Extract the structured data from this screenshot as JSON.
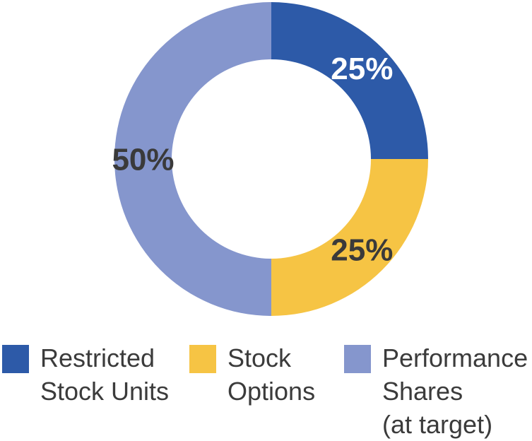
{
  "background_color": "#ffffff",
  "chart_data": {
    "type": "pie",
    "subtype": "donut",
    "title": "",
    "start_angle_deg": 0,
    "direction": "clockwise",
    "inner_radius_ratio": 0.635,
    "legend_position": "bottom",
    "categories": [
      "Restricted Stock Units",
      "Stock Options",
      "Performance Shares (at target)"
    ],
    "values": [
      25,
      25,
      50
    ],
    "slices": [
      {
        "name": "Restricted Stock Units",
        "value": 25,
        "label": "25%",
        "color": "#2d5aa8",
        "label_color": "#ffffff",
        "legend_label": "Restricted\nStock Units"
      },
      {
        "name": "Stock Options",
        "value": 25,
        "label": "25%",
        "color": "#f6c444",
        "label_color": "#3a3a3a",
        "legend_label": "Stock\nOptions"
      },
      {
        "name": "Performance Shares (at target)",
        "value": 50,
        "label": "50%",
        "color": "#8596cd",
        "label_color": "#3a3a3a",
        "legend_label": "Performance\nShares\n(at target)"
      }
    ]
  }
}
